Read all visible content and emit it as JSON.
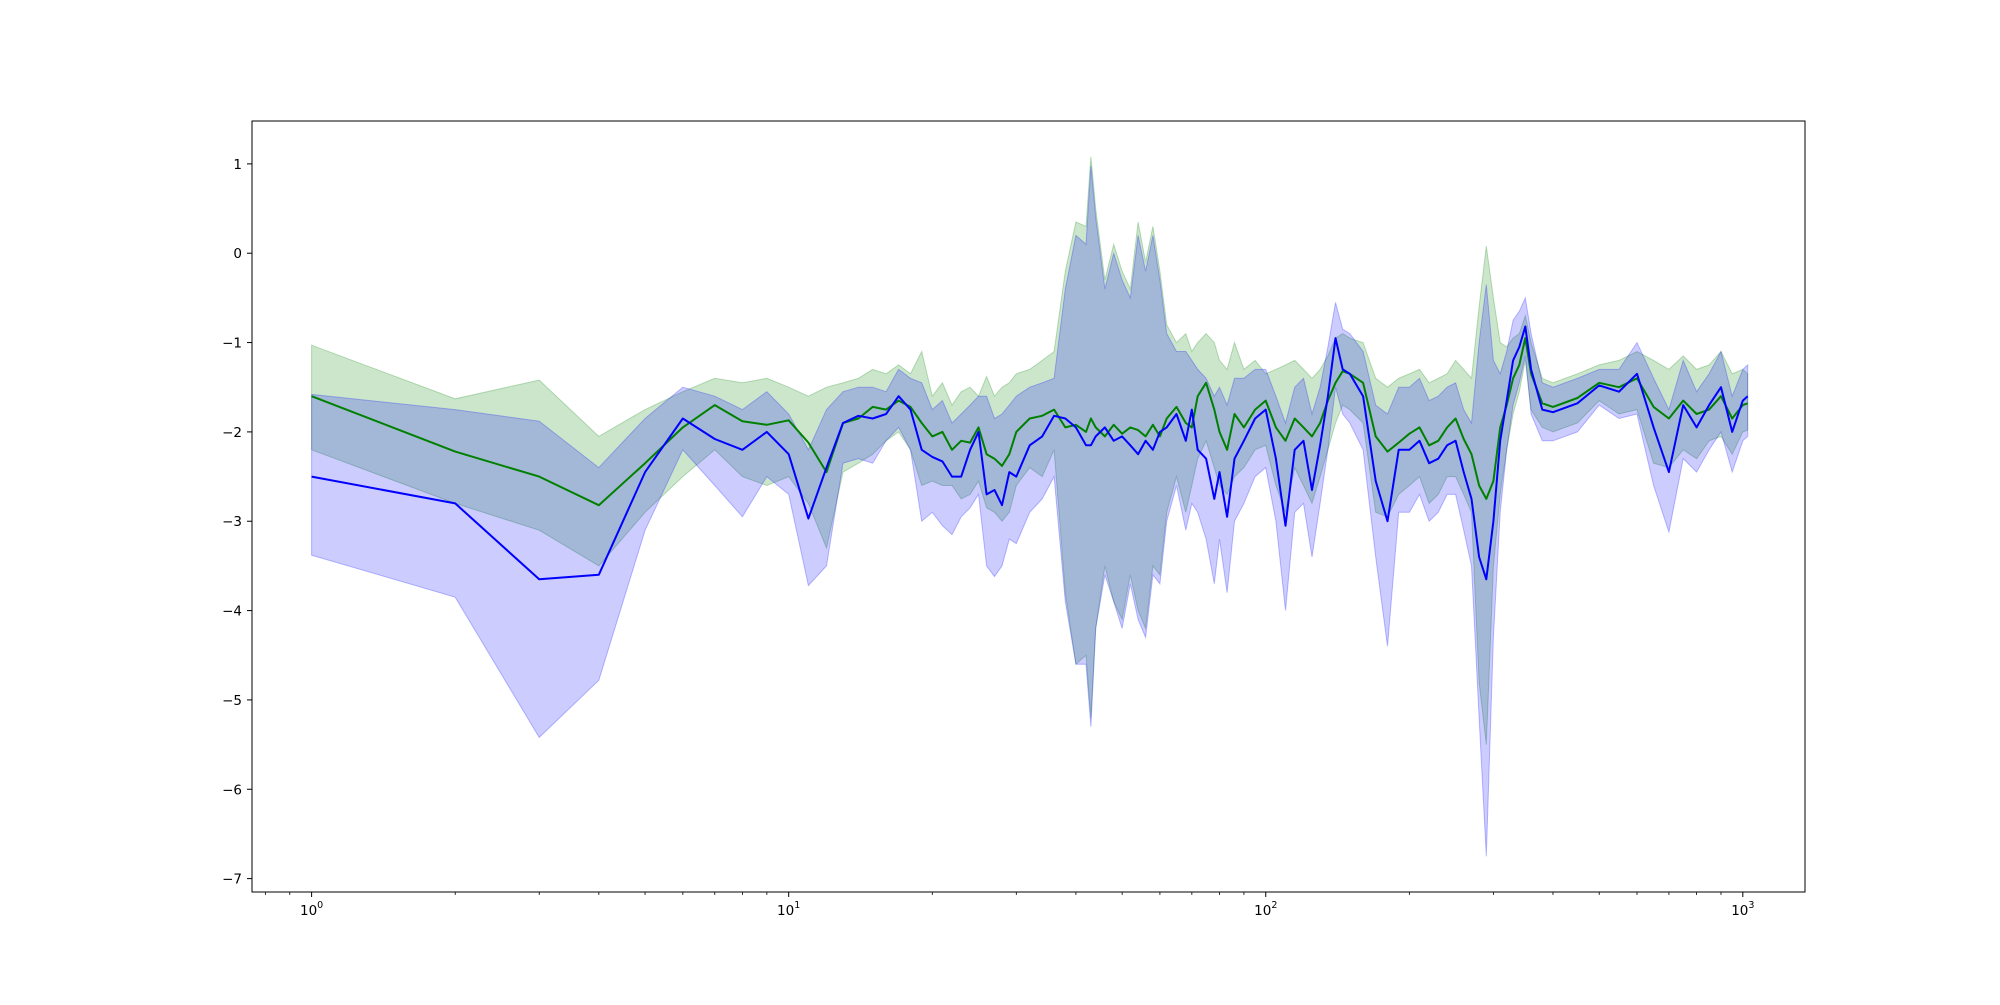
{
  "chart_data": {
    "type": "line",
    "title": "",
    "xlabel": "",
    "ylabel": "",
    "xscale": "log",
    "xlim": [
      0.75,
      1350
    ],
    "ylim": [
      -7.15,
      1.48
    ],
    "grid": false,
    "legend": "none",
    "x_ticks": [
      {
        "value": 1,
        "base": "10",
        "exp": "0"
      },
      {
        "value": 10,
        "base": "10",
        "exp": "1"
      },
      {
        "value": 100,
        "base": "10",
        "exp": "2"
      },
      {
        "value": 1000,
        "base": "10",
        "exp": "3"
      }
    ],
    "y_ticks": [
      {
        "value": 1,
        "label": "1"
      },
      {
        "value": 0,
        "label": "0"
      },
      {
        "value": -1,
        "label": "−1"
      },
      {
        "value": -2,
        "label": "−2"
      },
      {
        "value": -3,
        "label": "−3"
      },
      {
        "value": -4,
        "label": "−4"
      },
      {
        "value": -5,
        "label": "−5"
      },
      {
        "value": -6,
        "label": "−6"
      },
      {
        "value": -7,
        "label": "−7"
      }
    ],
    "series": [
      {
        "color": "#008000",
        "band_color": "#008000",
        "band_opacity": 0.2,
        "x": [
          1,
          2,
          3,
          4,
          5,
          6,
          7,
          8,
          9,
          10,
          11,
          12,
          13,
          14,
          15,
          16,
          17,
          18,
          19,
          20,
          21,
          22,
          23,
          24,
          25,
          26,
          27,
          28,
          29,
          30,
          32,
          34,
          36,
          38,
          40,
          42,
          43,
          44,
          46,
          48,
          50,
          52,
          54,
          56,
          58,
          60,
          62,
          65,
          68,
          70,
          72,
          75,
          78,
          80,
          83,
          86,
          90,
          95,
          100,
          105,
          110,
          115,
          120,
          125,
          130,
          135,
          140,
          145,
          150,
          160,
          170,
          180,
          190,
          200,
          210,
          220,
          230,
          240,
          250,
          260,
          270,
          280,
          290,
          300,
          310,
          320,
          330,
          340,
          350,
          360,
          380,
          400,
          450,
          500,
          550,
          600,
          650,
          700,
          750,
          800,
          850,
          900,
          950,
          1000,
          1024
        ],
        "y": [
          -1.6,
          -2.22,
          -2.5,
          -2.82,
          -2.35,
          -1.95,
          -1.7,
          -1.88,
          -1.92,
          -1.87,
          -2.12,
          -2.45,
          -1.9,
          -1.85,
          -1.72,
          -1.75,
          -1.65,
          -1.72,
          -1.9,
          -2.05,
          -2.0,
          -2.2,
          -2.1,
          -2.12,
          -1.95,
          -2.25,
          -2.3,
          -2.38,
          -2.25,
          -2.0,
          -1.85,
          -1.82,
          -1.75,
          -1.95,
          -1.92,
          -2.0,
          -1.85,
          -1.95,
          -2.05,
          -1.92,
          -2.02,
          -1.95,
          -1.98,
          -2.05,
          -1.92,
          -2.05,
          -1.85,
          -1.72,
          -1.9,
          -1.95,
          -1.6,
          -1.45,
          -1.75,
          -2.0,
          -2.2,
          -1.8,
          -1.95,
          -1.75,
          -1.65,
          -1.95,
          -2.1,
          -1.85,
          -1.95,
          -2.05,
          -1.9,
          -1.65,
          -1.45,
          -1.32,
          -1.35,
          -1.45,
          -2.05,
          -2.22,
          -2.12,
          -2.02,
          -1.95,
          -2.15,
          -2.1,
          -1.95,
          -1.85,
          -2.08,
          -2.25,
          -2.6,
          -2.75,
          -2.55,
          -1.95,
          -1.7,
          -1.4,
          -1.25,
          -0.95,
          -1.35,
          -1.68,
          -1.72,
          -1.62,
          -1.45,
          -1.5,
          -1.4,
          -1.72,
          -1.85,
          -1.65,
          -1.8,
          -1.75,
          -1.6,
          -1.85,
          -1.7,
          -1.68
        ],
        "band_lower": [
          -2.2,
          -2.8,
          -3.1,
          -3.5,
          -2.9,
          -2.5,
          -2.2,
          -2.5,
          -2.6,
          -2.5,
          -2.8,
          -3.3,
          -2.45,
          -2.35,
          -2.25,
          -2.1,
          -2.0,
          -2.2,
          -2.6,
          -2.55,
          -2.6,
          -2.6,
          -2.75,
          -2.7,
          -2.55,
          -2.85,
          -2.9,
          -3.0,
          -2.9,
          -2.6,
          -2.4,
          -2.5,
          -2.2,
          -3.8,
          -4.6,
          -4.5,
          -5.2,
          -4.2,
          -3.5,
          -3.9,
          -4.1,
          -3.6,
          -4.0,
          -4.2,
          -3.5,
          -3.6,
          -2.9,
          -2.5,
          -2.9,
          -2.6,
          -2.3,
          -2.1,
          -2.4,
          -2.6,
          -2.7,
          -2.5,
          -2.4,
          -2.2,
          -2.15,
          -2.6,
          -2.9,
          -2.4,
          -2.6,
          -2.8,
          -2.5,
          -2.2,
          -1.9,
          -1.7,
          -1.75,
          -1.9,
          -2.9,
          -2.95,
          -2.7,
          -2.6,
          -2.5,
          -2.8,
          -2.7,
          -2.5,
          -2.5,
          -2.7,
          -2.9,
          -4.8,
          -5.5,
          -3.5,
          -2.7,
          -2.2,
          -1.8,
          -1.55,
          -1.2,
          -1.75,
          -1.95,
          -2.0,
          -1.9,
          -1.65,
          -1.8,
          -1.75,
          -2.35,
          -2.4,
          -2.2,
          -2.3,
          -2.1,
          -2.05,
          -2.25,
          -2.0,
          -1.98
        ],
        "band_upper": [
          -1.03,
          -1.63,
          -1.42,
          -2.05,
          -1.75,
          -1.55,
          -1.4,
          -1.45,
          -1.4,
          -1.5,
          -1.6,
          -1.5,
          -1.45,
          -1.4,
          -1.3,
          -1.35,
          -1.25,
          -1.35,
          -1.1,
          -1.6,
          -1.45,
          -1.7,
          -1.55,
          -1.5,
          -1.6,
          -1.38,
          -1.6,
          -1.5,
          -1.45,
          -1.35,
          -1.3,
          -1.2,
          -1.1,
          -0.2,
          0.35,
          0.3,
          1.08,
          0.5,
          -0.3,
          0.1,
          -0.2,
          -0.4,
          0.35,
          -0.1,
          0.3,
          -0.2,
          -0.8,
          -1.0,
          -0.9,
          -1.1,
          -1.0,
          -0.9,
          -1.0,
          -1.2,
          -1.3,
          -1.0,
          -1.3,
          -1.2,
          -1.35,
          -1.3,
          -1.25,
          -1.2,
          -1.3,
          -1.4,
          -1.3,
          -1.15,
          -0.95,
          -0.9,
          -0.95,
          -1.0,
          -1.4,
          -1.5,
          -1.4,
          -1.35,
          -1.3,
          -1.45,
          -1.4,
          -1.35,
          -1.2,
          -1.3,
          -1.4,
          -0.6,
          0.08,
          -0.5,
          -1.0,
          -1.05,
          -0.95,
          -0.9,
          -0.7,
          -1.0,
          -1.4,
          -1.45,
          -1.35,
          -1.25,
          -1.2,
          -1.1,
          -1.2,
          -1.3,
          -1.15,
          -1.3,
          -1.25,
          -1.1,
          -1.35,
          -1.3,
          -1.35
        ]
      },
      {
        "color": "#0000ff",
        "band_color": "#0000ff",
        "band_opacity": 0.2,
        "x": [
          1,
          2,
          3,
          4,
          5,
          6,
          7,
          8,
          9,
          10,
          11,
          12,
          13,
          14,
          15,
          16,
          17,
          18,
          19,
          20,
          21,
          22,
          23,
          24,
          25,
          26,
          27,
          28,
          29,
          30,
          32,
          34,
          36,
          38,
          40,
          42,
          43,
          44,
          46,
          48,
          50,
          52,
          54,
          56,
          58,
          60,
          62,
          65,
          68,
          70,
          72,
          75,
          78,
          80,
          83,
          86,
          90,
          95,
          100,
          105,
          110,
          115,
          120,
          125,
          130,
          135,
          140,
          145,
          150,
          160,
          170,
          180,
          190,
          200,
          210,
          220,
          230,
          240,
          250,
          260,
          270,
          280,
          290,
          300,
          310,
          320,
          330,
          340,
          350,
          360,
          380,
          400,
          450,
          500,
          550,
          600,
          650,
          700,
          750,
          800,
          850,
          900,
          950,
          1000,
          1024
        ],
        "y": [
          -2.5,
          -2.8,
          -3.65,
          -3.6,
          -2.45,
          -1.85,
          -2.08,
          -2.2,
          -2.0,
          -2.25,
          -2.97,
          -2.4,
          -1.9,
          -1.82,
          -1.85,
          -1.8,
          -1.6,
          -1.75,
          -2.2,
          -2.28,
          -2.33,
          -2.5,
          -2.5,
          -2.2,
          -2.0,
          -2.7,
          -2.65,
          -2.82,
          -2.45,
          -2.5,
          -2.15,
          -2.05,
          -1.82,
          -1.85,
          -1.95,
          -2.15,
          -2.15,
          -2.05,
          -1.95,
          -2.1,
          -2.05,
          -2.15,
          -2.25,
          -2.1,
          -2.2,
          -2.0,
          -1.95,
          -1.8,
          -2.1,
          -1.75,
          -2.2,
          -2.3,
          -2.75,
          -2.45,
          -2.95,
          -2.3,
          -2.1,
          -1.85,
          -1.75,
          -2.3,
          -3.05,
          -2.2,
          -2.1,
          -2.65,
          -2.15,
          -1.6,
          -0.95,
          -1.3,
          -1.35,
          -1.6,
          -2.55,
          -3.0,
          -2.2,
          -2.2,
          -2.1,
          -2.35,
          -2.3,
          -2.15,
          -2.1,
          -2.45,
          -2.75,
          -3.4,
          -3.65,
          -3.0,
          -2.1,
          -1.65,
          -1.2,
          -1.05,
          -0.82,
          -1.3,
          -1.75,
          -1.78,
          -1.68,
          -1.48,
          -1.55,
          -1.35,
          -1.95,
          -2.45,
          -1.7,
          -1.95,
          -1.7,
          -1.5,
          -2.0,
          -1.65,
          -1.6
        ],
        "band_lower": [
          -3.38,
          -3.85,
          -5.42,
          -4.78,
          -3.1,
          -2.2,
          -2.6,
          -2.95,
          -2.5,
          -2.7,
          -3.72,
          -3.5,
          -2.35,
          -2.3,
          -2.35,
          -2.1,
          -1.95,
          -2.2,
          -3.0,
          -2.9,
          -3.05,
          -3.15,
          -2.95,
          -2.85,
          -2.7,
          -3.5,
          -3.62,
          -3.5,
          -3.2,
          -3.25,
          -2.9,
          -2.75,
          -2.5,
          -3.9,
          -4.6,
          -4.6,
          -5.3,
          -4.2,
          -3.6,
          -3.9,
          -4.2,
          -3.7,
          -4.1,
          -4.3,
          -3.6,
          -3.7,
          -3.0,
          -2.6,
          -3.1,
          -2.8,
          -2.9,
          -3.2,
          -3.7,
          -3.2,
          -3.8,
          -3.0,
          -2.8,
          -2.5,
          -2.4,
          -3.0,
          -4.0,
          -2.9,
          -2.8,
          -3.4,
          -2.8,
          -2.2,
          -1.5,
          -1.8,
          -1.9,
          -2.2,
          -3.4,
          -4.4,
          -2.9,
          -2.9,
          -2.7,
          -3.0,
          -2.9,
          -2.7,
          -2.7,
          -3.1,
          -3.5,
          -5.2,
          -6.75,
          -4.3,
          -2.9,
          -2.2,
          -1.7,
          -1.45,
          -1.15,
          -1.8,
          -2.1,
          -2.1,
          -2.0,
          -1.7,
          -1.85,
          -1.8,
          -2.6,
          -3.12,
          -2.3,
          -2.45,
          -2.2,
          -2.0,
          -2.45,
          -2.1,
          -2.05
        ],
        "band_upper": [
          -1.58,
          -1.75,
          -1.88,
          -2.4,
          -1.85,
          -1.5,
          -1.6,
          -1.75,
          -1.55,
          -1.8,
          -2.2,
          -1.75,
          -1.55,
          -1.5,
          -1.5,
          -1.55,
          -1.3,
          -1.4,
          -1.45,
          -1.75,
          -1.65,
          -1.9,
          -1.8,
          -1.7,
          -1.6,
          -1.6,
          -1.85,
          -1.8,
          -1.7,
          -1.6,
          -1.5,
          -1.45,
          -1.4,
          -0.4,
          0.2,
          0.1,
          0.98,
          0.4,
          -0.4,
          0.0,
          -0.3,
          -0.5,
          0.2,
          -0.2,
          0.2,
          -0.3,
          -0.9,
          -1.1,
          -1.1,
          -1.2,
          -1.3,
          -1.4,
          -1.6,
          -1.5,
          -1.7,
          -1.4,
          -1.4,
          -1.3,
          -1.3,
          -1.6,
          -1.9,
          -1.5,
          -1.4,
          -1.8,
          -1.5,
          -1.05,
          -0.55,
          -0.85,
          -0.9,
          -1.1,
          -1.7,
          -1.8,
          -1.5,
          -1.5,
          -1.4,
          -1.65,
          -1.6,
          -1.5,
          -1.45,
          -1.75,
          -1.9,
          -1.0,
          -0.35,
          -1.2,
          -1.35,
          -1.1,
          -0.75,
          -0.65,
          -0.5,
          -0.9,
          -1.45,
          -1.5,
          -1.4,
          -1.3,
          -1.3,
          -1.0,
          -1.4,
          -1.75,
          -1.2,
          -1.55,
          -1.35,
          -1.1,
          -1.6,
          -1.3,
          -1.25
        ]
      }
    ]
  }
}
